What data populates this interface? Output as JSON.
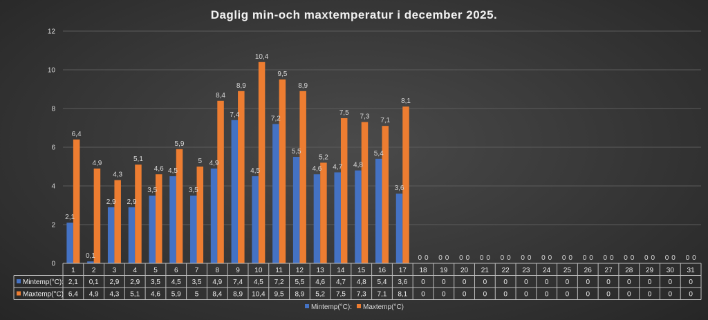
{
  "chart_data": {
    "type": "bar",
    "title": "Daglig min-och maxtemperatur i december 2025.",
    "categories": [
      "1",
      "2",
      "3",
      "4",
      "5",
      "6",
      "7",
      "8",
      "9",
      "10",
      "11",
      "12",
      "13",
      "14",
      "15",
      "16",
      "17",
      "18",
      "19",
      "20",
      "21",
      "22",
      "23",
      "24",
      "25",
      "26",
      "27",
      "28",
      "29",
      "30",
      "31"
    ],
    "series": [
      {
        "name": "Mintemp(°C):",
        "color": "#4472c4",
        "values": [
          2.1,
          0.1,
          2.9,
          2.9,
          3.5,
          4.5,
          3.5,
          4.9,
          7.4,
          4.5,
          7.2,
          5.5,
          4.6,
          4.7,
          4.8,
          5.4,
          3.6,
          0,
          0,
          0,
          0,
          0,
          0,
          0,
          0,
          0,
          0,
          0,
          0,
          0,
          0
        ],
        "labels": [
          "2,1",
          "0,1",
          "2,9",
          "2,9",
          "3,5",
          "4,5",
          "3,5",
          "4,9",
          "7,4",
          "4,5",
          "7,2",
          "5,5",
          "4,6",
          "4,7",
          "4,8",
          "5,4",
          "3,6",
          "0",
          "0",
          "0",
          "0",
          "0",
          "0",
          "0",
          "0",
          "0",
          "0",
          "0",
          "0",
          "0",
          "0"
        ]
      },
      {
        "name": "Maxtemp(°C)",
        "color": "#ed7d31",
        "values": [
          6.4,
          4.9,
          4.3,
          5.1,
          4.6,
          5.9,
          5,
          8.4,
          8.9,
          10.4,
          9.5,
          8.9,
          5.2,
          7.5,
          7.3,
          7.1,
          8.1,
          0,
          0,
          0,
          0,
          0,
          0,
          0,
          0,
          0,
          0,
          0,
          0,
          0,
          0
        ],
        "labels": [
          "6,4",
          "4,9",
          "4,3",
          "5,1",
          "4,6",
          "5,9",
          "5",
          "8,4",
          "8,9",
          "10,4",
          "9,5",
          "8,9",
          "5,2",
          "7,5",
          "7,3",
          "7,1",
          "8,1",
          "0",
          "0",
          "0",
          "0",
          "0",
          "0",
          "0",
          "0",
          "0",
          "0",
          "0",
          "0",
          "0",
          "0"
        ]
      }
    ],
    "yticks": [
      0,
      2,
      4,
      6,
      8,
      10,
      12
    ],
    "ylim": [
      0,
      12
    ],
    "grid": true,
    "legend": "bottom",
    "data_table": true
  }
}
